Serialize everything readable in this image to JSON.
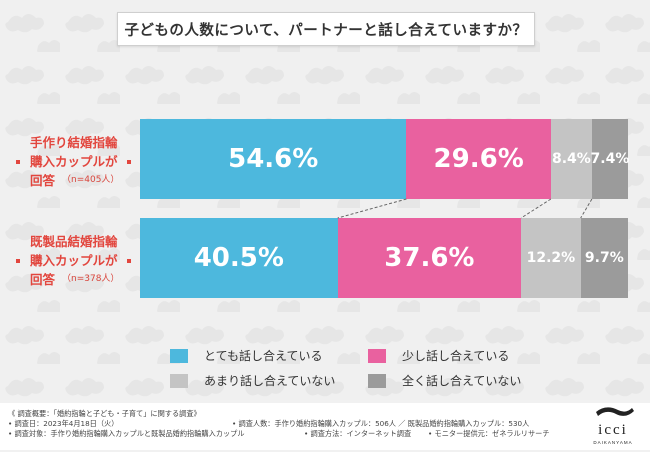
{
  "title": "子どもの人数について、パートナーと話し合えていますか？",
  "groups": [
    {
      "line1": "手作り結婚指輪",
      "line2": "購入カップルが",
      "line3": "回答",
      "n": "（n=405人）",
      "labels": [
        "54.6%",
        "29.6%",
        "8.4%",
        "7.4%"
      ]
    },
    {
      "line1": "既製品結婚指輪",
      "line2": "購入カップルが",
      "line3": "回答",
      "n": "（n=378人）",
      "labels": [
        "40.5%",
        "37.6%",
        "12.2%",
        "9.7%"
      ]
    }
  ],
  "legend": [
    {
      "label": "とても話し合えている",
      "color": "#4db8dd"
    },
    {
      "label": "少し話し合えている",
      "color": "#e9619f"
    },
    {
      "label": "あまり話し合えていない",
      "color": "#c4c4c4"
    },
    {
      "label": "全く話し合えていない",
      "color": "#9b9b9b"
    }
  ],
  "chart_data": {
    "type": "bar",
    "orientation": "horizontal",
    "stacked": true,
    "percent": true,
    "categories": [
      "手作り結婚指輪購入カップルが回答（n=405人）",
      "既製品結婚指輪購入カップルが回答（n=378人）"
    ],
    "series": [
      {
        "name": "とても話し合えている",
        "color": "#4db8dd",
        "values": [
          54.6,
          40.5
        ]
      },
      {
        "name": "少し話し合えている",
        "color": "#e9619f",
        "values": [
          29.6,
          37.6
        ]
      },
      {
        "name": "あまり話し合えていない",
        "color": "#c4c4c4",
        "values": [
          8.4,
          12.2
        ]
      },
      {
        "name": "全く話し合えていない",
        "color": "#9b9b9b",
        "values": [
          7.4,
          9.7
        ]
      }
    ],
    "title": "子どもの人数について、パートナーと話し合えていますか？",
    "legend_position": "bottom",
    "grid": false
  },
  "footer": {
    "line1": "《 調査概要：「婚約指輪と子ども・子育て」に関する調査》",
    "line2a": "• 調査日：2023年4月18日（火）",
    "line2b": "• 調査人数：手作り婚約指輪購入カップル：506人 ／ 既製品婚約指輪購入カップル：530人",
    "line3a": "• 調査対象：手作り婚約指輪購入カップルと既製品婚約指輪購入カップル",
    "line3b": "• 調査方法：インターネット調査",
    "line3c": "• モニター提供元：ゼネラルリサーチ"
  },
  "logo": {
    "text": "icci",
    "sub": "DAIKANYAMA"
  }
}
